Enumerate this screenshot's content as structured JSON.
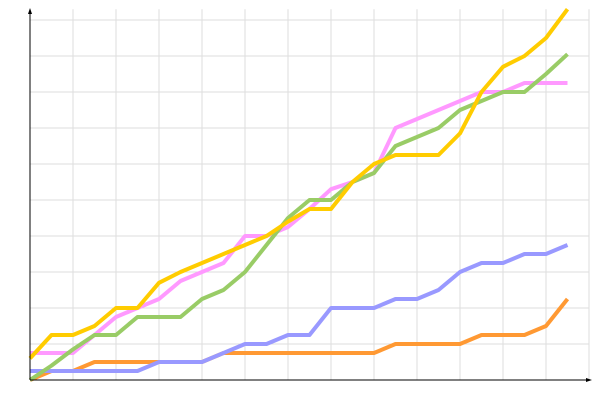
{
  "chart_data": {
    "type": "line",
    "xlim": [
      0,
      26
    ],
    "ylim": [
      0,
      103
    ],
    "xticks": [
      2,
      4,
      6,
      8,
      10,
      12,
      14,
      16,
      18,
      20,
      22,
      24,
      26
    ],
    "yticks": [
      10,
      20,
      30,
      40,
      50,
      60,
      70,
      80,
      90,
      100
    ],
    "grid": true,
    "x": [
      0,
      1,
      2,
      3,
      4,
      5,
      6,
      7,
      8,
      9,
      10,
      11,
      12,
      13,
      14,
      15,
      16,
      17,
      18,
      19,
      20,
      21,
      22,
      23,
      24,
      25
    ],
    "series": [
      {
        "color": "#ff9933",
        "values": [
          0,
          2.5,
          2.5,
          5,
          5,
          5,
          5,
          5,
          5,
          7.5,
          7.5,
          7.5,
          7.5,
          7.5,
          7.5,
          7.5,
          7.5,
          10,
          10,
          10,
          10,
          12.5,
          12.5,
          12.5,
          15,
          22.5
        ]
      },
      {
        "color": "#9999ff",
        "values": [
          2.5,
          2.5,
          2.5,
          2.5,
          2.5,
          2.5,
          5,
          5,
          5,
          7.5,
          10,
          10,
          12.5,
          12.5,
          20,
          20,
          20,
          22.5,
          22.5,
          25,
          30,
          32.5,
          32.5,
          35,
          35,
          37.5
        ]
      },
      {
        "color": "#ff99ff",
        "values": [
          7.5,
          7.5,
          7.5,
          12.5,
          17.5,
          20,
          22.5,
          27.5,
          30,
          32.5,
          40,
          40,
          42.5,
          47.5,
          53,
          55,
          57.5,
          70,
          72.5,
          75,
          77.5,
          80,
          80,
          82.5,
          82.5,
          82.5
        ]
      },
      {
        "color": "#99cc66",
        "values": [
          0,
          4,
          8.5,
          12.5,
          12.5,
          17.5,
          17.5,
          17.5,
          22.5,
          25,
          30,
          37.5,
          45,
          50,
          50,
          55,
          57.5,
          65,
          67.5,
          70,
          75,
          77.5,
          80,
          80,
          85,
          90.5
        ]
      },
      {
        "color": "#ffcc00",
        "values": [
          6,
          12.5,
          12.5,
          15,
          20,
          20,
          27,
          30,
          32.5,
          35,
          37.5,
          40,
          44,
          47.5,
          47.5,
          55,
          60,
          62.5,
          62.5,
          62.5,
          68.5,
          80,
          87,
          90,
          95,
          103
        ]
      }
    ]
  }
}
